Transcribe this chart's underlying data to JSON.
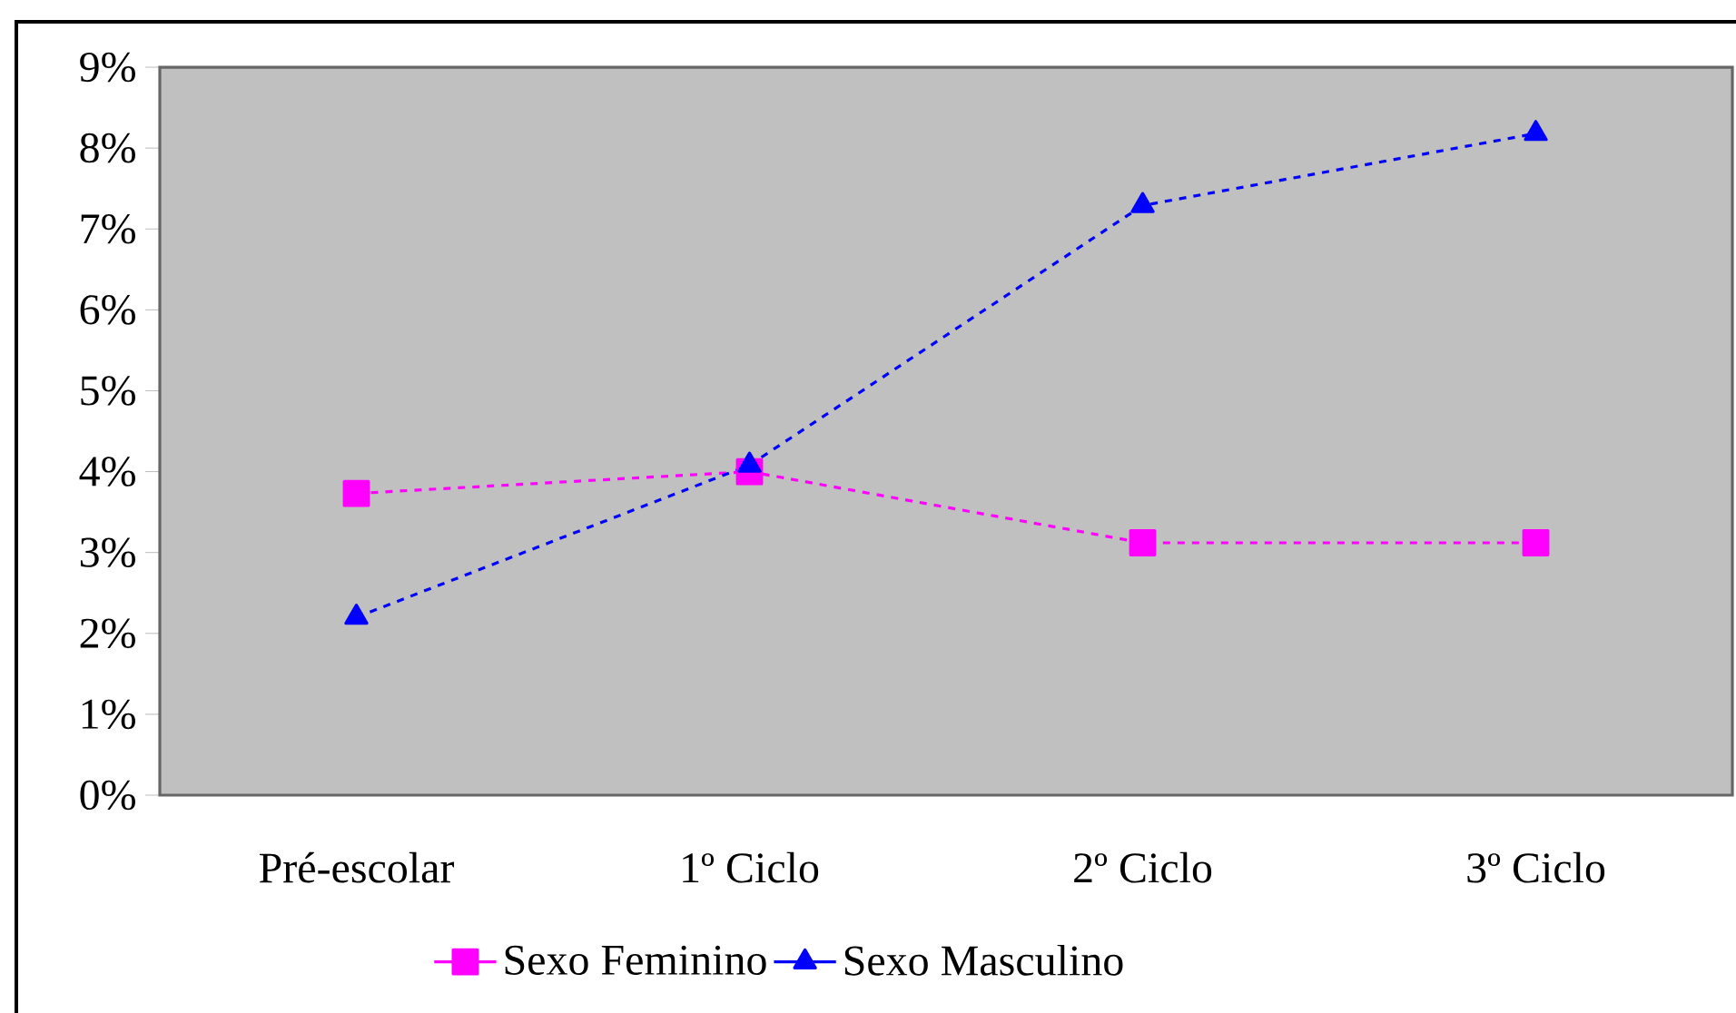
{
  "chart_data": {
    "type": "line",
    "categories": [
      "Pré-escolar",
      "1º Ciclo",
      "2º Ciclo",
      "3º Ciclo"
    ],
    "series": [
      {
        "name": "Sexo Feminino",
        "color": "#ff00ff",
        "marker": "square",
        "line_style": "dashed",
        "values": [
          3.73,
          4.0,
          3.12,
          3.12
        ]
      },
      {
        "name": "Sexo Masculino",
        "color": "#0000ff",
        "marker": "triangle",
        "line_style": "dashed",
        "values": [
          2.2,
          4.08,
          7.29,
          8.18
        ]
      }
    ],
    "ylim": [
      0,
      9
    ],
    "yticks": [
      {
        "value": 0,
        "label": "0%"
      },
      {
        "value": 1,
        "label": "1%"
      },
      {
        "value": 2,
        "label": "2%"
      },
      {
        "value": 3,
        "label": "3%"
      },
      {
        "value": 4,
        "label": "4%"
      },
      {
        "value": 5,
        "label": "5%"
      },
      {
        "value": 6,
        "label": "6%"
      },
      {
        "value": 7,
        "label": "7%"
      },
      {
        "value": 8,
        "label": "8%"
      },
      {
        "value": 9,
        "label": "9%"
      }
    ],
    "grid": false,
    "legend": "bottom"
  }
}
